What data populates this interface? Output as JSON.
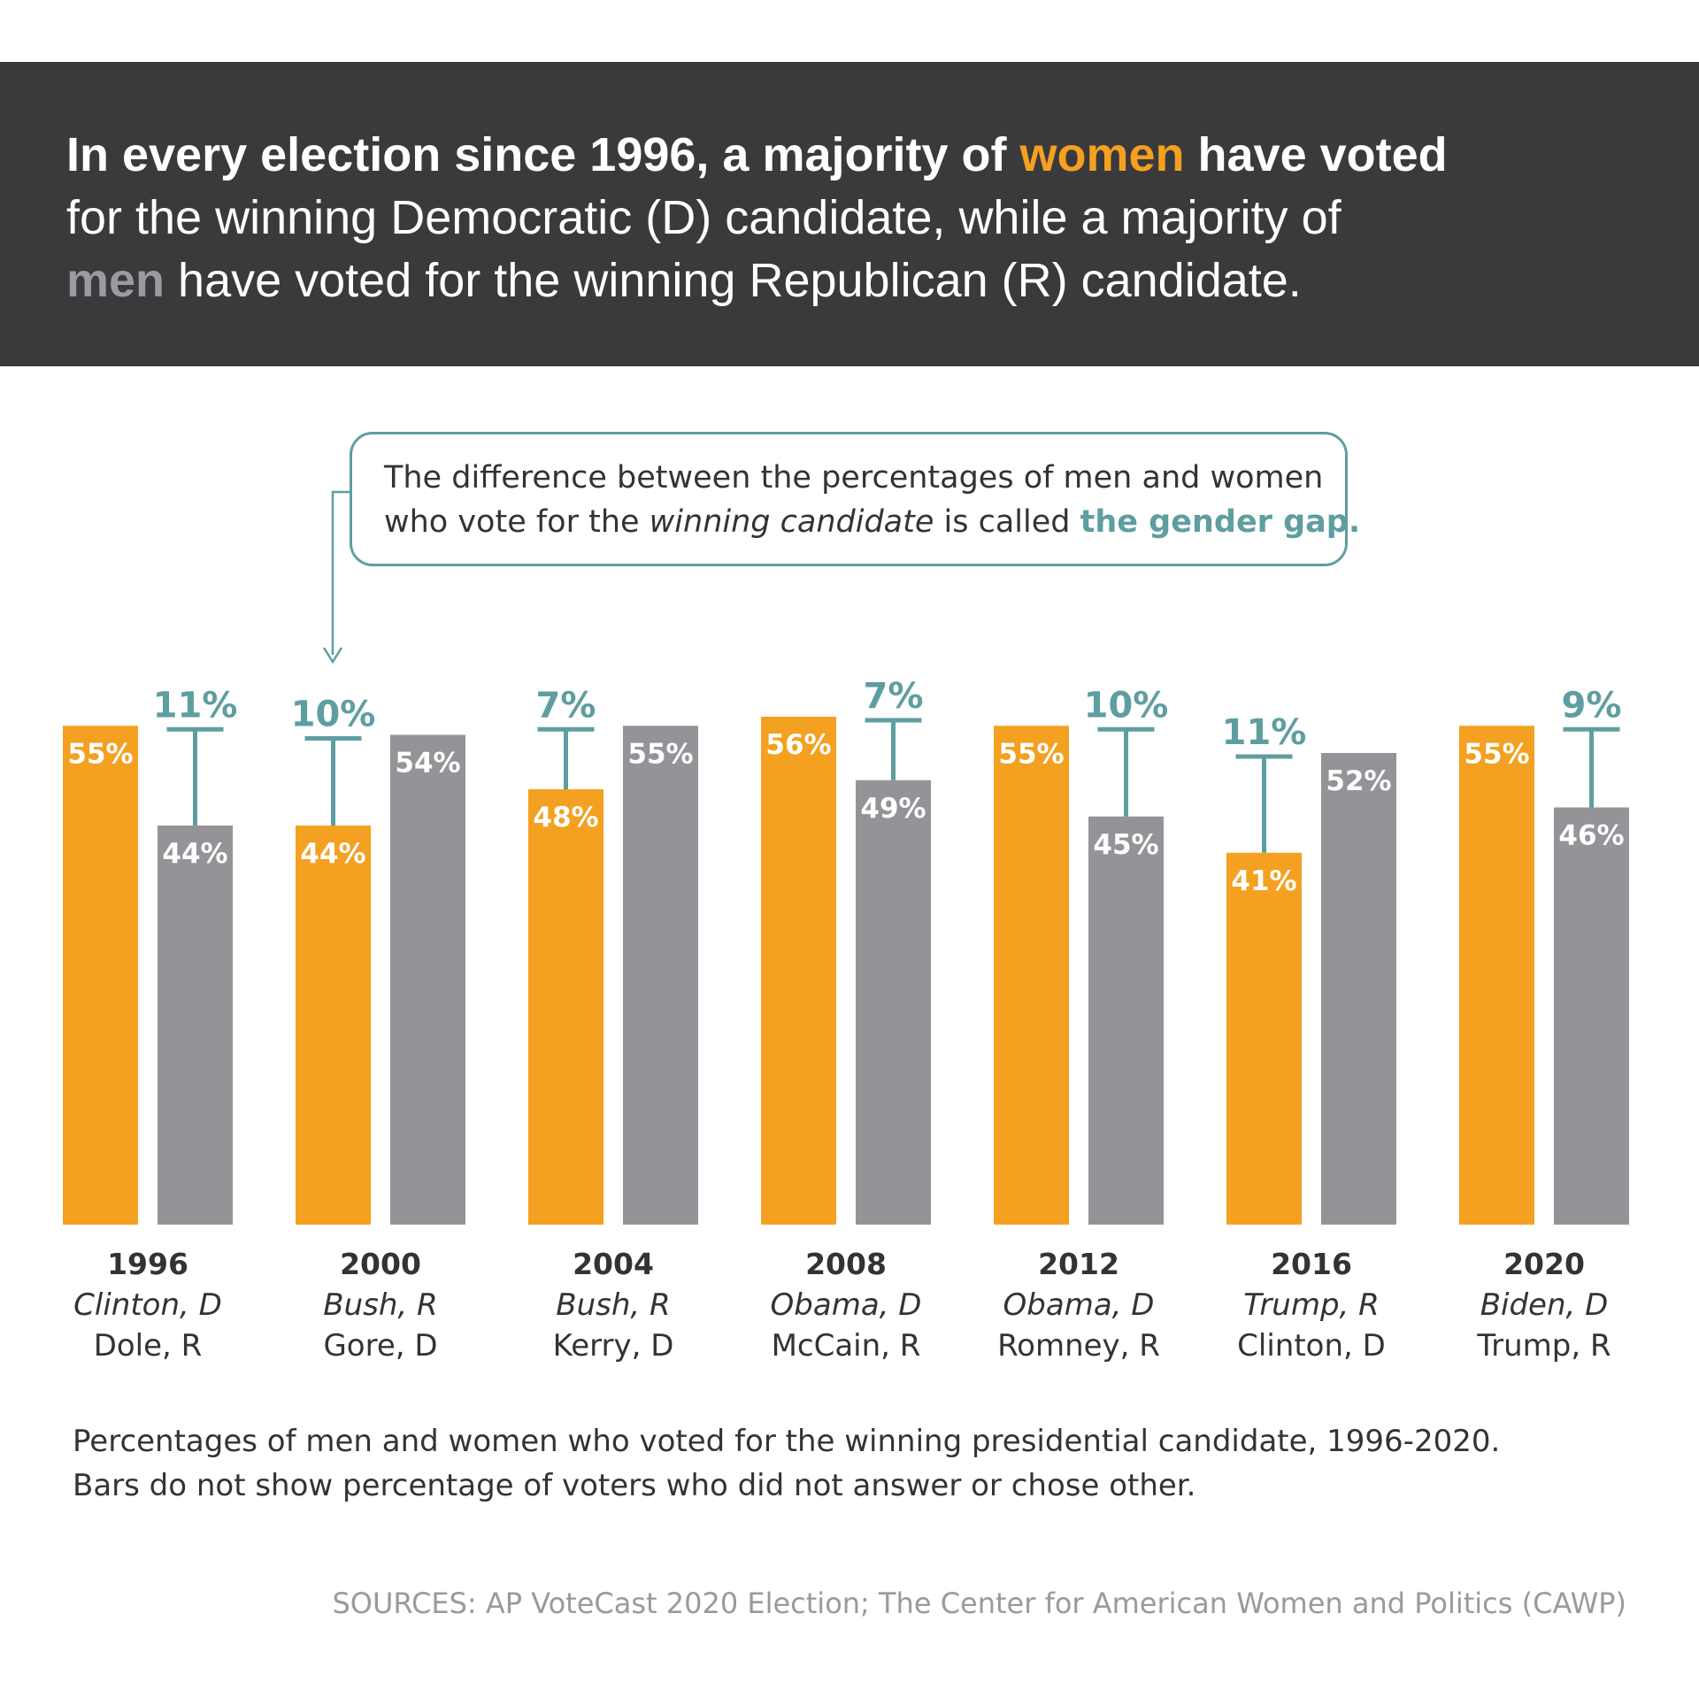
{
  "header": {
    "line1_a": "In every election since 1996, a majority of ",
    "line1_women": "women",
    "line1_b": " have voted",
    "line2": "for the winning Democratic (D) candidate, while a majority of",
    "line3_men": "men",
    "line3_b": " have voted for the winning Republican (R) candidate."
  },
  "callout": {
    "line1": "The difference between the percentages of men and women",
    "line2_a": "who vote for the ",
    "line2_italic": "winning candidate",
    "line2_b": " is called ",
    "line2_highlight": "the gender gap."
  },
  "notes": {
    "line1": "Percentages of men and women who voted for the winning presidential candidate, 1996-2020.",
    "line2": "Bars do not show percentage of voters who did not answer or chose other."
  },
  "source": "SOURCES: AP VoteCast 2020 Election; The Center for American Women and Politics (CAWP)",
  "colors": {
    "women": "#f4a020",
    "men": "#949498",
    "gap": "#5f9ea0",
    "header_bg": "#3a3a3c"
  },
  "chart_data": {
    "type": "bar",
    "categories": [
      "1996",
      "2000",
      "2004",
      "2008",
      "2012",
      "2016",
      "2020"
    ],
    "winners": [
      "Clinton, D",
      "Bush, R",
      "Bush, R",
      "Obama, D",
      "Obama, D",
      "Trump, R",
      "Biden, D"
    ],
    "losers": [
      "Dole, R",
      "Gore, D",
      "Kerry, D",
      "McCain, R",
      "Romney, R",
      "Clinton, D",
      "Trump, R"
    ],
    "series": [
      {
        "name": "women",
        "values": [
          55,
          44,
          48,
          56,
          55,
          41,
          55
        ]
      },
      {
        "name": "men",
        "values": [
          44,
          54,
          55,
          49,
          45,
          52,
          46
        ]
      }
    ],
    "gender_gap": [
      11,
      10,
      7,
      7,
      10,
      11,
      9
    ],
    "value_suffix": "%",
    "ylim": [
      0,
      56
    ]
  }
}
